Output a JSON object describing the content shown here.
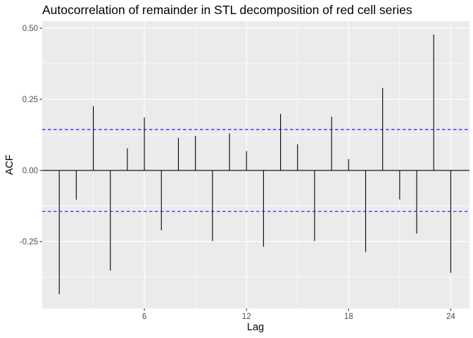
{
  "chart_data": {
    "type": "bar",
    "title": "Autocorrelation of remainder in STL decomposition of red cell series",
    "xlabel": "Lag",
    "ylabel": "ACF",
    "x": [
      1,
      2,
      3,
      4,
      5,
      6,
      7,
      8,
      9,
      10,
      11,
      12,
      13,
      14,
      15,
      16,
      17,
      18,
      19,
      20,
      21,
      22,
      23,
      24
    ],
    "values": [
      -0.435,
      -0.103,
      0.226,
      -0.352,
      0.078,
      0.186,
      -0.21,
      0.115,
      0.122,
      -0.248,
      0.13,
      0.068,
      -0.268,
      0.199,
      0.092,
      -0.248,
      0.189,
      0.04,
      -0.286,
      0.29,
      -0.102,
      -0.222,
      0.478,
      -0.36
    ],
    "confidence_bound": 0.144,
    "xlim": [
      0.0,
      25.1
    ],
    "ylim": [
      -0.485,
      0.525
    ],
    "x_ticks": [
      6,
      12,
      18,
      24
    ],
    "x_tick_labels": [
      "6",
      "12",
      "18",
      "24"
    ],
    "x_minor_ticks": [
      3,
      9,
      15,
      21
    ],
    "y_ticks": [
      -0.25,
      0.0,
      0.25,
      0.5
    ],
    "y_tick_labels": [
      "-0.25",
      "0.00",
      "0.25",
      "0.50"
    ],
    "y_minor_ticks": [
      -0.375,
      -0.125,
      0.125,
      0.375
    ],
    "grid": true,
    "colors": {
      "panel": "#ebebeb",
      "grid": "#ffffff",
      "bars": "#000000",
      "bounds": "#0000ff",
      "zero_line": "#000000"
    }
  }
}
